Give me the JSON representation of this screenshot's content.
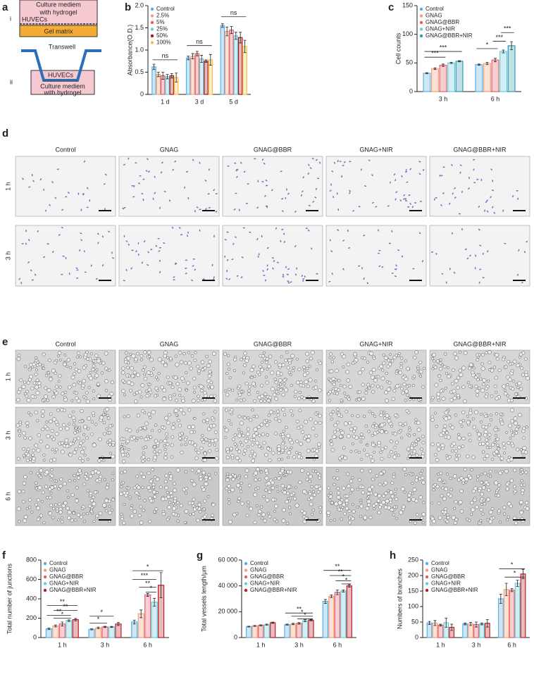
{
  "panel_a": {
    "label": "a",
    "i": {
      "numeral": "i",
      "medium": "Culture mediem",
      "medium2": "with hydrogel",
      "cells": "HUVECs",
      "gel": "Gel matrix"
    },
    "ii": {
      "numeral": "ii",
      "transwell": "Transwell",
      "cells": "HUVECs",
      "medium": "Culture mediem",
      "medium2": "with hydrogel"
    }
  },
  "panel_d": {
    "label": "d",
    "columns": [
      "Control",
      "GNAG",
      "GNAG@BBR",
      "GNAG+NIR",
      "GNAG@BBR+NIR"
    ],
    "rows": [
      "1 h",
      "3 h"
    ]
  },
  "panel_e": {
    "label": "e",
    "columns": [
      "Control",
      "GNAG",
      "GNAG@BBR",
      "GNAG+NIR",
      "GNAG@BBR+NIR"
    ],
    "rows": [
      "1 h",
      "3 h",
      "6 h"
    ]
  },
  "chart_data": [
    {
      "type": "bar",
      "panel": "b",
      "y_label": "Absorbance(O.D.)",
      "legend": "upper left",
      "categories": [
        "1 d",
        "3 d",
        "5 d"
      ],
      "ylim": [
        0,
        2
      ],
      "yticks": [
        0,
        0.5,
        {
          "value": 1,
          "label": "1.0"
        },
        1.5,
        {
          "value": 2,
          "label": "2.0"
        }
      ],
      "series": [
        {
          "name": "Control",
          "color": "#5aaee0",
          "values": [
            0.62,
            0.82,
            1.55
          ],
          "errors": [
            0.06,
            0.04,
            0.04
          ]
        },
        {
          "name": "2.5%",
          "color": "#f2a07b",
          "values": [
            0.45,
            0.86,
            1.42
          ],
          "errors": [
            0.05,
            0.06,
            0.1
          ]
        },
        {
          "name": "5%",
          "color": "#e3606a",
          "values": [
            0.42,
            0.92,
            1.45
          ],
          "errors": [
            0.08,
            0.05,
            0.08
          ]
        },
        {
          "name": "25%",
          "color": "#6ccbd8",
          "values": [
            0.4,
            0.8,
            1.32
          ],
          "errors": [
            0.05,
            0.08,
            0.08
          ]
        },
        {
          "name": "50%",
          "color": "#a3161b",
          "values": [
            0.42,
            0.75,
            1.28
          ],
          "errors": [
            0.05,
            0.03,
            0.12
          ]
        },
        {
          "name": "100%",
          "color": "#f4c04a",
          "values": [
            0.38,
            0.78,
            1.08
          ],
          "errors": [
            0.1,
            0.12,
            0.14
          ]
        }
      ],
      "annotations": [
        "ns",
        "ns",
        "ns"
      ]
    },
    {
      "type": "bar",
      "panel": "c",
      "y_label": "Cell counts",
      "legend": "upper left",
      "categories": [
        "3 h",
        "6 h"
      ],
      "ylim": [
        0,
        150
      ],
      "yticks": [
        0,
        50,
        100,
        150
      ],
      "series": [
        {
          "name": "Control",
          "color": "#5aaee0",
          "values": [
            32,
            47
          ],
          "errors": [
            1,
            1
          ]
        },
        {
          "name": "GNAG",
          "color": "#f2a07b",
          "values": [
            40,
            49
          ],
          "errors": [
            1.5,
            2
          ]
        },
        {
          "name": "GNAG@BBR",
          "color": "#e3606a",
          "values": [
            46,
            55
          ],
          "errors": [
            2,
            3
          ]
        },
        {
          "name": "GNAG+NIR",
          "color": "#6ccbd8",
          "values": [
            50,
            70
          ],
          "errors": [
            1,
            2.5
          ]
        },
        {
          "name": "GNAG@BBR+NIR",
          "color": "#2d9aae",
          "values": [
            53,
            80
          ],
          "errors": [
            1,
            7
          ]
        }
      ],
      "annotations": [
        "***",
        "***",
        "*",
        "***",
        "***"
      ]
    },
    {
      "type": "bar",
      "panel": "f",
      "y_label": "Total number of junctions",
      "legend": "upper left",
      "categories": [
        "1 h",
        "3 h",
        "6 h"
      ],
      "ylim": [
        0,
        800
      ],
      "yticks": [
        0,
        200,
        400,
        600,
        800
      ],
      "series": [
        {
          "name": "Control",
          "color": "#5aaee0",
          "values": [
            90,
            85,
            160
          ],
          "errors": [
            8,
            5,
            20
          ]
        },
        {
          "name": "GNAG",
          "color": "#f2a07b",
          "values": [
            120,
            100,
            245
          ],
          "errors": [
            10,
            8,
            40
          ]
        },
        {
          "name": "GNAG@BBR",
          "color": "#e3606a",
          "values": [
            140,
            110,
            440
          ],
          "errors": [
            20,
            6,
            15
          ]
        },
        {
          "name": "GNAG+NIR",
          "color": "#6ccbd8",
          "values": [
            175,
            110,
            365
          ],
          "errors": [
            8,
            5,
            40
          ]
        },
        {
          "name": "GNAG@BBR+NIR",
          "color": "#b81f27",
          "values": [
            185,
            140,
            540
          ],
          "errors": [
            12,
            15,
            130
          ]
        }
      ],
      "annotations": [
        "**",
        "**",
        "**",
        "*",
        "*",
        "*",
        "*",
        "***",
        "**",
        "*"
      ]
    },
    {
      "type": "bar",
      "panel": "g",
      "y_label": "Total vessels length/μm",
      "legend": "upper left",
      "categories": [
        "1 h",
        "3 h",
        "6 h"
      ],
      "ylim": [
        0,
        60000
      ],
      "yticks": [
        0,
        {
          "value": 20000,
          "label": "20 000"
        },
        {
          "value": 40000,
          "label": "40 000"
        },
        {
          "value": 60000,
          "label": "60 000"
        }
      ],
      "series": [
        {
          "name": "Control",
          "color": "#5aaee0",
          "values": [
            8500,
            10000,
            28000
          ],
          "errors": [
            300,
            400,
            1500
          ]
        },
        {
          "name": "GNAG",
          "color": "#f2a07b",
          "values": [
            9000,
            10500,
            32000
          ],
          "errors": [
            300,
            500,
            1000
          ]
        },
        {
          "name": "GNAG@BBR",
          "color": "#e3606a",
          "values": [
            9500,
            11000,
            35000
          ],
          "errors": [
            400,
            600,
            1800
          ]
        },
        {
          "name": "GNAG+NIR",
          "color": "#6ccbd8",
          "values": [
            10000,
            13000,
            36000
          ],
          "errors": [
            400,
            800,
            800
          ]
        },
        {
          "name": "GNAG@BBR+NIR",
          "color": "#b81f27",
          "values": [
            11500,
            13500,
            40000
          ],
          "errors": [
            500,
            500,
            1000
          ]
        }
      ],
      "annotations": [
        "**",
        "*",
        "*",
        "**",
        "**",
        "*",
        "*"
      ]
    },
    {
      "type": "bar",
      "panel": "h",
      "y_label": "Numbers of branches",
      "legend": "upper left",
      "categories": [
        "1 h",
        "3 h",
        "6 h"
      ],
      "ylim": [
        0,
        250
      ],
      "yticks": [
        0,
        50,
        100,
        150,
        200,
        250
      ],
      "series": [
        {
          "name": "Control",
          "color": "#5aaee0",
          "values": [
            47,
            44,
            125
          ],
          "errors": [
            5,
            3,
            15
          ]
        },
        {
          "name": "GNAG",
          "color": "#f2a07b",
          "values": [
            47,
            44,
            155
          ],
          "errors": [
            8,
            5,
            20
          ]
        },
        {
          "name": "GNAG@BBR",
          "color": "#e3606a",
          "values": [
            40,
            42,
            153
          ],
          "errors": [
            3,
            8,
            5
          ]
        },
        {
          "name": "GNAG+NIR",
          "color": "#6ccbd8",
          "values": [
            48,
            44,
            175
          ],
          "errors": [
            15,
            3,
            10
          ]
        },
        {
          "name": "GNAG@BBR+NIR",
          "color": "#b81f27",
          "values": [
            33,
            46,
            205
          ],
          "errors": [
            10,
            12,
            15
          ]
        }
      ],
      "annotations": [
        "*",
        "*"
      ]
    }
  ]
}
